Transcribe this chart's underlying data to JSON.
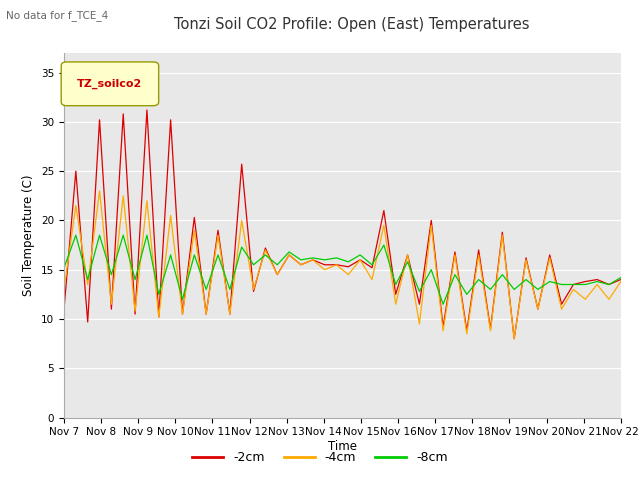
{
  "title": "Tonzi Soil CO2 Profile: Open (East) Temperatures",
  "subtitle": "No data for f_TCE_4",
  "ylabel": "Soil Temperature (C)",
  "xlabel": "Time",
  "legend_label": "TZ_soilco2",
  "ylim": [
    0,
    37
  ],
  "yticks": [
    0,
    5,
    10,
    15,
    20,
    25,
    30,
    35
  ],
  "line_labels": [
    "-2cm",
    "-4cm",
    "-8cm"
  ],
  "line_colors": [
    "#dd0000",
    "#ffaa00",
    "#00cc00"
  ],
  "plot_bg_color": "#e8e8e8",
  "x_labels": [
    "Nov 7",
    "Nov 8",
    "Nov 9",
    "Nov 10",
    "Nov 11",
    "Nov 12",
    "Nov 13",
    "Nov 14",
    "Nov 15",
    "Nov 16",
    "Nov 17",
    "Nov 18",
    "Nov 19",
    "Nov 20",
    "Nov 21",
    "Nov 22"
  ],
  "series_2cm": [
    11.0,
    25.0,
    9.7,
    30.2,
    11.0,
    30.8,
    10.5,
    31.2,
    10.2,
    30.2,
    10.5,
    20.3,
    10.5,
    19.0,
    10.5,
    25.7,
    12.8,
    17.2,
    14.5,
    16.5,
    15.5,
    16.0,
    15.5,
    15.5,
    15.3,
    16.0,
    15.2,
    21.0,
    12.5,
    16.5,
    11.5,
    20.0,
    9.2,
    16.8,
    8.8,
    17.0,
    9.0,
    18.8,
    8.0,
    16.2,
    11.0,
    16.5,
    11.5,
    13.5,
    13.8,
    14.0,
    13.5,
    14.0
  ],
  "series_4cm": [
    13.0,
    21.5,
    13.5,
    23.0,
    11.5,
    22.5,
    10.8,
    22.0,
    10.2,
    20.5,
    10.5,
    19.0,
    10.5,
    18.5,
    10.5,
    20.0,
    13.0,
    17.0,
    14.5,
    16.5,
    15.5,
    16.0,
    15.0,
    15.5,
    14.5,
    16.0,
    14.0,
    19.5,
    11.5,
    16.5,
    9.5,
    19.5,
    8.8,
    16.5,
    8.5,
    16.5,
    8.8,
    18.5,
    8.0,
    16.0,
    11.0,
    16.2,
    11.0,
    13.0,
    12.0,
    13.5,
    12.0,
    13.8
  ],
  "series_8cm": [
    15.2,
    18.5,
    14.0,
    18.5,
    14.5,
    18.5,
    14.0,
    18.5,
    12.5,
    16.5,
    12.0,
    16.5,
    13.0,
    16.5,
    13.0,
    17.3,
    15.5,
    16.5,
    15.5,
    16.8,
    16.0,
    16.2,
    16.0,
    16.2,
    15.8,
    16.5,
    15.5,
    17.5,
    13.5,
    15.8,
    12.8,
    15.0,
    11.5,
    14.5,
    12.5,
    14.0,
    13.0,
    14.5,
    13.0,
    14.0,
    13.0,
    13.8,
    13.5,
    13.5,
    13.5,
    13.8,
    13.5,
    14.2
  ]
}
